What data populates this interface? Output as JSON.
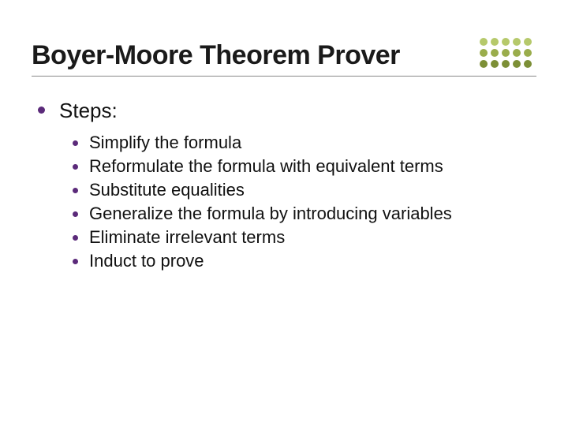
{
  "title": "Boyer-Moore Theorem Prover",
  "bullet_color": "#5b2a7a",
  "heading": "Steps:",
  "steps": [
    "Simplify the formula",
    "Reformulate the formula with equivalent terms",
    "Substitute equalities",
    "Generalize the formula by introducing variables",
    "Eliminate irrelevant terms",
    "Induct to prove"
  ],
  "dot_grid_colors": [
    "#b6c96b",
    "#b6c96b",
    "#b6c96b",
    "#b6c96b",
    "#b6c96b",
    "#9aad4c",
    "#9aad4c",
    "#9aad4c",
    "#9aad4c",
    "#9aad4c",
    "#7c8f36",
    "#7c8f36",
    "#7c8f36",
    "#7c8f36",
    "#7c8f36"
  ],
  "colors": {
    "title_text": "#1a1a1a",
    "body_text": "#111111",
    "underline": "#888888",
    "background": "#ffffff"
  },
  "typography": {
    "title_fontsize": 34,
    "heading_fontsize": 26,
    "item_fontsize": 22,
    "font_family": "Arial"
  }
}
